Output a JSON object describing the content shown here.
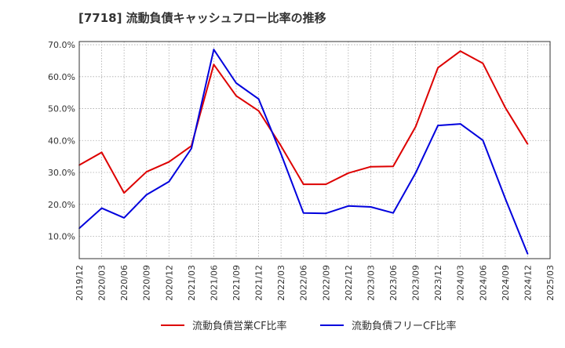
{
  "chart_data": {
    "type": "line",
    "title": "[7718]  流動負債キャッシュフロー比率の推移",
    "xlabel": "",
    "ylabel": "",
    "x": [
      "2019/12",
      "2020/03",
      "2020/06",
      "2020/09",
      "2020/12",
      "2021/03",
      "2021/06",
      "2021/09",
      "2021/12",
      "2022/03",
      "2022/06",
      "2022/09",
      "2022/12",
      "2023/03",
      "2023/06",
      "2023/09",
      "2023/12",
      "2024/03",
      "2024/06",
      "2024/09",
      "2024/12",
      "2025/03"
    ],
    "x_tick_labels": [
      "2019/12",
      "2020/03",
      "2020/06",
      "2020/09",
      "2020/12",
      "2021/03",
      "2021/06",
      "2021/09",
      "2021/12",
      "2022/03",
      "2022/06",
      "2022/09",
      "2022/12",
      "2023/03",
      "2023/06",
      "2023/09",
      "2023/12",
      "2024/03",
      "2024/06",
      "2024/09",
      "2024/12",
      "2025/03"
    ],
    "y_ticks": [
      10,
      20,
      30,
      40,
      50,
      60,
      70
    ],
    "y_tick_labels": [
      "10.0%",
      "20.0%",
      "30.0%",
      "40.0%",
      "50.0%",
      "60.0%",
      "70.0%"
    ],
    "ylim": [
      3,
      71
    ],
    "grid": true,
    "legend_position": "bottom",
    "series": [
      {
        "name": "流動負債営業CF比率",
        "color": "#dd0000",
        "values": [
          32.3,
          36.3,
          23.6,
          30.2,
          33.3,
          38.3,
          63.8,
          54.0,
          49.3,
          38.3,
          26.3,
          26.3,
          29.8,
          31.8,
          31.9,
          44.3,
          62.8,
          68.0,
          64.2,
          50.3,
          38.9,
          null
        ]
      },
      {
        "name": "流動負債フリーCF比率",
        "color": "#0000dd",
        "values": [
          12.5,
          18.8,
          15.8,
          23.0,
          27.1,
          37.5,
          68.5,
          58.0,
          53.0,
          35.8,
          17.3,
          17.2,
          19.5,
          19.2,
          17.3,
          29.8,
          44.7,
          45.2,
          40.1,
          21.8,
          4.5,
          null
        ]
      }
    ]
  }
}
